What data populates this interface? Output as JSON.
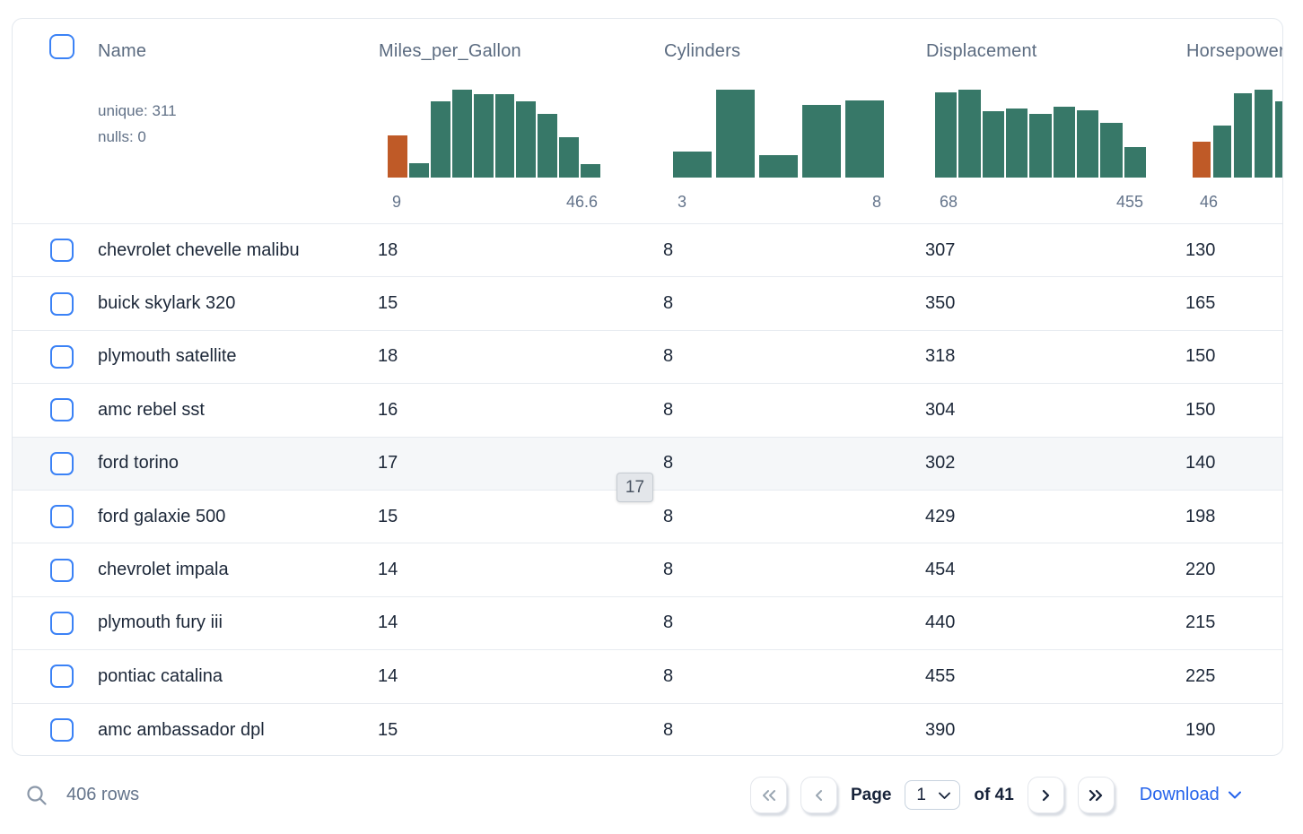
{
  "colors": {
    "bar_teal": "#377868",
    "bar_orange": "#bf5a27",
    "checkbox_blue": "#3b82f6",
    "download_blue": "#2563eb"
  },
  "table": {
    "columns": [
      {
        "label": "Name",
        "unique_label": "unique: 311",
        "nulls_label": "nulls: 0"
      },
      {
        "label": "Miles_per_Gallon",
        "axis_min": "9",
        "axis_max": "46.6"
      },
      {
        "label": "Cylinders",
        "axis_min": "3",
        "axis_max": "8"
      },
      {
        "label": "Displacement",
        "axis_min": "68",
        "axis_max": "455"
      },
      {
        "label": "Horsepower",
        "axis_min": "46",
        "axis_max": ""
      }
    ],
    "rows": [
      {
        "name": "chevrolet chevelle malibu",
        "mpg": "18",
        "cylinders": "8",
        "displacement": "307",
        "horsepower": "130"
      },
      {
        "name": "buick skylark 320",
        "mpg": "15",
        "cylinders": "8",
        "displacement": "350",
        "horsepower": "165"
      },
      {
        "name": "plymouth satellite",
        "mpg": "18",
        "cylinders": "8",
        "displacement": "318",
        "horsepower": "150"
      },
      {
        "name": "amc rebel sst",
        "mpg": "16",
        "cylinders": "8",
        "displacement": "304",
        "horsepower": "150"
      },
      {
        "name": "ford torino",
        "mpg": "17",
        "cylinders": "8",
        "displacement": "302",
        "horsepower": "140"
      },
      {
        "name": "ford galaxie 500",
        "mpg": "15",
        "cylinders": "8",
        "displacement": "429",
        "horsepower": "198"
      },
      {
        "name": "chevrolet impala",
        "mpg": "14",
        "cylinders": "8",
        "displacement": "454",
        "horsepower": "220"
      },
      {
        "name": "plymouth fury iii",
        "mpg": "14",
        "cylinders": "8",
        "displacement": "440",
        "horsepower": "215"
      },
      {
        "name": "pontiac catalina",
        "mpg": "14",
        "cylinders": "8",
        "displacement": "455",
        "horsepower": "225"
      },
      {
        "name": "amc ambassador dpl",
        "mpg": "15",
        "cylinders": "8",
        "displacement": "390",
        "horsepower": "190"
      }
    ]
  },
  "chart_data": [
    {
      "type": "bar",
      "title": "Miles_per_Gallon histogram",
      "x_min": 9,
      "x_max": 46.6,
      "relative_heights": [
        0.48,
        0.16,
        0.87,
        1.0,
        0.95,
        0.95,
        0.87,
        0.72,
        0.46,
        0.15
      ],
      "bar_colors": [
        "orange",
        "teal",
        "teal",
        "teal",
        "teal",
        "teal",
        "teal",
        "teal",
        "teal",
        "teal"
      ]
    },
    {
      "type": "bar",
      "title": "Cylinders histogram",
      "x_min": 3,
      "x_max": 8,
      "relative_heights": [
        0.3,
        1.0,
        0.26,
        0.83,
        0.88
      ],
      "bar_colors": [
        "teal",
        "teal",
        "teal",
        "teal",
        "teal"
      ]
    },
    {
      "type": "bar",
      "title": "Displacement histogram",
      "x_min": 68,
      "x_max": 455,
      "relative_heights": [
        0.97,
        1.0,
        0.75,
        0.79,
        0.72,
        0.81,
        0.77,
        0.62,
        0.35
      ],
      "bar_colors": [
        "teal",
        "teal",
        "teal",
        "teal",
        "teal",
        "teal",
        "teal",
        "teal",
        "teal"
      ]
    },
    {
      "type": "bar",
      "title": "Horsepower histogram (clipped at card edge)",
      "x_min": 46,
      "relative_heights": [
        0.41,
        0.59,
        0.96,
        1.0,
        0.87
      ],
      "bar_colors": [
        "orange",
        "teal",
        "teal",
        "teal",
        "teal"
      ]
    }
  ],
  "tooltip": {
    "value": "17"
  },
  "footer": {
    "row_count": "406 rows",
    "page_label": "Page",
    "page_value": "1",
    "total_label": "of 41",
    "download_label": "Download"
  }
}
